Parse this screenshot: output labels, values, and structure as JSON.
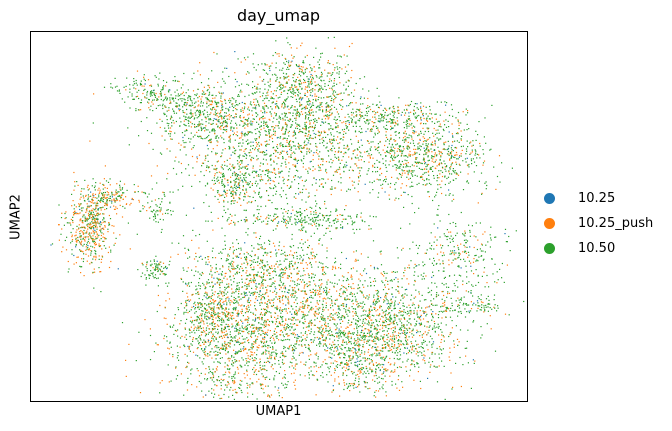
{
  "chart_data": {
    "type": "scatter",
    "title": "day_umap",
    "xlabel": "UMAP1",
    "ylabel": "UMAP2",
    "grid": false,
    "legend_position": "right",
    "series": [
      {
        "name": "10.25",
        "color": "#1f77b4"
      },
      {
        "name": "10.25_push",
        "color": "#ff7f0e"
      },
      {
        "name": "10.50",
        "color": "#2ca02c"
      }
    ]
  }
}
